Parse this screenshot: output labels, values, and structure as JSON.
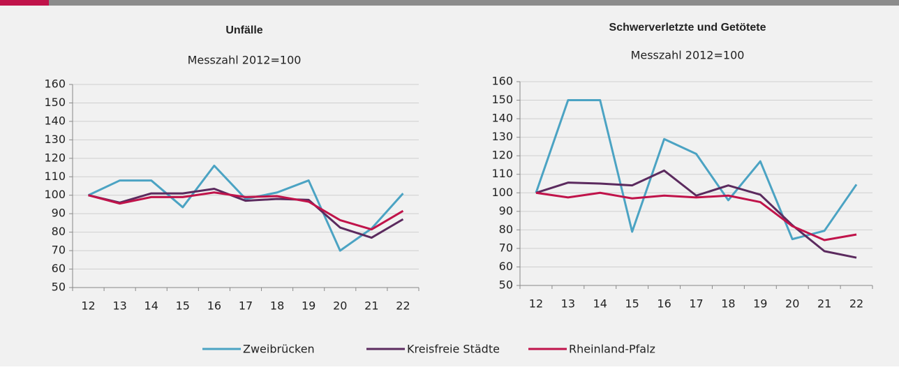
{
  "chart_data": [
    {
      "type": "line",
      "title": "Unfälle",
      "subtitle": "Messzahl 2012=100",
      "categories": [
        "12",
        "13",
        "14",
        "15",
        "16",
        "17",
        "18",
        "19",
        "20",
        "21",
        "22"
      ],
      "ylim": [
        50,
        160
      ],
      "yticks": [
        50,
        60,
        70,
        80,
        90,
        100,
        110,
        120,
        130,
        140,
        150,
        160
      ],
      "grid": true,
      "series": [
        {
          "name": "Zweibrücken",
          "color": "#4ba3c3",
          "values": [
            100,
            108,
            108,
            93.5,
            116,
            98,
            101.5,
            108,
            70,
            82,
            101
          ]
        },
        {
          "name": "Kreisfreie Städte",
          "color": "#5b2a5e",
          "values": [
            100,
            96,
            101,
            101,
            103.5,
            97,
            98,
            97.5,
            82.5,
            77,
            87
          ]
        },
        {
          "name": "Rheinland-Pfalz",
          "color": "#c0134a",
          "values": [
            100,
            95.5,
            99,
            99,
            101.5,
            99,
            99.5,
            96.5,
            86.5,
            81.5,
            91.5
          ]
        }
      ]
    },
    {
      "type": "line",
      "title": "Schwerverletzte und Getötete",
      "subtitle": "Messzahl 2012=100",
      "categories": [
        "12",
        "13",
        "14",
        "15",
        "16",
        "17",
        "18",
        "19",
        "20",
        "21",
        "22"
      ],
      "ylim": [
        50,
        160
      ],
      "yticks": [
        50,
        60,
        70,
        80,
        90,
        100,
        110,
        120,
        130,
        140,
        150,
        160
      ],
      "grid": true,
      "series": [
        {
          "name": "Zweibrücken",
          "color": "#4ba3c3",
          "values": [
            100,
            150,
            150,
            79,
            129,
            121,
            96,
            117,
            75,
            79.5,
            104.5
          ]
        },
        {
          "name": "Kreisfreie Städte",
          "color": "#5b2a5e",
          "values": [
            100,
            105.5,
            105,
            104,
            112,
            98.5,
            104,
            99,
            82.5,
            68.5,
            65
          ]
        },
        {
          "name": "Rheinland-Pfalz",
          "color": "#c0134a",
          "values": [
            100,
            97.5,
            100,
            97,
            98.5,
            97.5,
            98.5,
            95,
            82,
            74.5,
            77.5
          ]
        }
      ]
    }
  ]
}
